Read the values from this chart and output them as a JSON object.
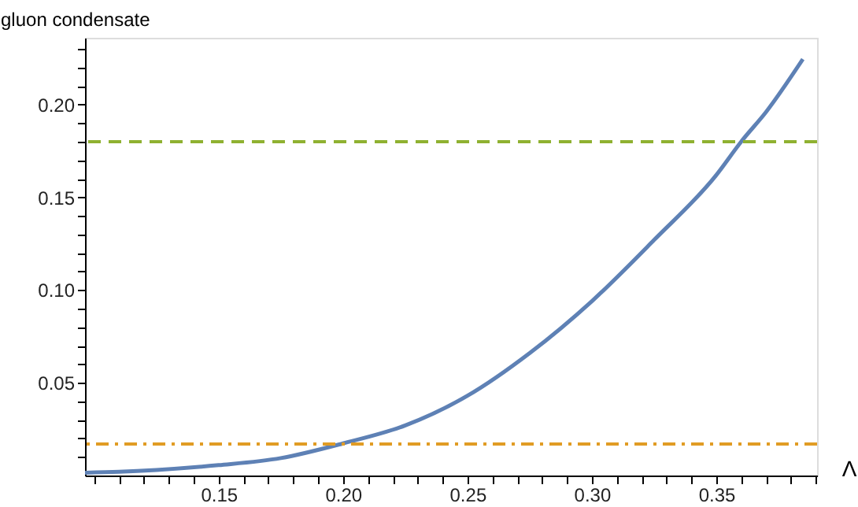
{
  "chart_data": {
    "type": "line",
    "xlabel": "Λ",
    "ylabel": "gluon condensate",
    "x": [
      0.0963,
      0.11,
      0.125,
      0.15,
      0.175,
      0.2,
      0.225,
      0.25,
      0.275,
      0.3,
      0.325,
      0.35,
      0.36,
      0.37,
      0.3848
    ],
    "series": [
      {
        "color": "#5e81b5",
        "values": [
          0.0015,
          0.002,
          0.003,
          0.0056,
          0.0094,
          0.0173,
          0.027,
          0.043,
          0.066,
          0.094,
          0.127,
          0.162,
          0.18,
          0.196,
          0.2245
        ]
      }
    ],
    "xlim": [
      0.0963,
      0.3905
    ],
    "ylim": [
      0,
      0.236
    ],
    "xticks": [
      {
        "value": 0.1,
        "label": null
      },
      {
        "value": 0.11,
        "label": null
      },
      {
        "value": 0.12,
        "label": null
      },
      {
        "value": 0.13,
        "label": null
      },
      {
        "value": 0.14,
        "label": null
      },
      0.15,
      {
        "value": 0.16,
        "label": null
      },
      {
        "value": 0.17,
        "label": null
      },
      {
        "value": 0.18,
        "label": null
      },
      {
        "value": 0.19,
        "label": null
      },
      {
        "value": 0.2,
        "label": "0.20"
      },
      {
        "value": 0.21,
        "label": null
      },
      {
        "value": 0.22,
        "label": null
      },
      {
        "value": 0.23,
        "label": null
      },
      {
        "value": 0.24,
        "label": null
      },
      0.25,
      {
        "value": 0.26,
        "label": null
      },
      {
        "value": 0.27,
        "label": null
      },
      {
        "value": 0.28,
        "label": null
      },
      {
        "value": 0.29,
        "label": null
      },
      {
        "value": 0.3,
        "label": "0.30"
      },
      {
        "value": 0.31,
        "label": null
      },
      {
        "value": 0.32,
        "label": null
      },
      {
        "value": 0.33,
        "label": null
      },
      {
        "value": 0.34,
        "label": null
      },
      0.35,
      {
        "value": 0.36,
        "label": null
      },
      {
        "value": 0.37,
        "label": null
      },
      {
        "value": 0.38,
        "label": null
      },
      {
        "value": 0.39,
        "label": null
      }
    ],
    "yticks": [
      {
        "value": 0.01,
        "label": null
      },
      {
        "value": 0.02,
        "label": null
      },
      {
        "value": 0.03,
        "label": null
      },
      {
        "value": 0.04,
        "label": null
      },
      0.05,
      {
        "value": 0.06,
        "label": null
      },
      {
        "value": 0.07,
        "label": null
      },
      {
        "value": 0.08,
        "label": null
      },
      {
        "value": 0.09,
        "label": null
      },
      {
        "value": 0.1,
        "label": "0.10"
      },
      {
        "value": 0.11,
        "label": null
      },
      {
        "value": 0.12,
        "label": null
      },
      {
        "value": 0.13,
        "label": null
      },
      {
        "value": 0.14,
        "label": null
      },
      0.15,
      {
        "value": 0.16,
        "label": null
      },
      {
        "value": 0.17,
        "label": null
      },
      {
        "value": 0.18,
        "label": null
      },
      {
        "value": 0.19,
        "label": null
      },
      {
        "value": 0.2,
        "label": "0.20"
      },
      {
        "value": 0.21,
        "label": null
      },
      {
        "value": 0.22,
        "label": null
      },
      {
        "value": 0.23,
        "label": null
      }
    ],
    "ref_lines": [
      {
        "axis": "y",
        "value": 0.18,
        "color": "#8fb131",
        "line_style": "dashed"
      },
      {
        "axis": "y",
        "value": 0.017,
        "color": "#e19c24",
        "line_style": "dashdot"
      }
    ],
    "grid": false,
    "marker": "none",
    "line_style": "solid"
  }
}
